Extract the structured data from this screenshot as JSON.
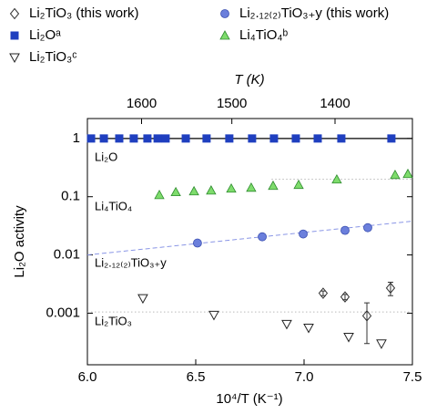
{
  "chart_data": {
    "type": "scatter",
    "xlabel": "10⁴/T (K⁻¹)",
    "ylabel": "Li₂O activity",
    "x2label": "T (K)",
    "xlim": [
      6.0,
      7.5
    ],
    "xticks": [
      {
        "value": 6,
        "label": "6.0"
      },
      6.5,
      {
        "value": 7,
        "label": "7.0"
      },
      7.5
    ],
    "x2ticks": [
      1600,
      1500,
      1400
    ],
    "ylim": [
      0.00013,
      2.2
    ],
    "yticks": [
      1,
      0.1,
      0.01,
      0.001
    ],
    "ylog": true,
    "series": [
      {
        "name": "Li₂TiO₃ (this work)",
        "marker": "diamond",
        "color": "#333333",
        "x": [
          7.088,
          7.189,
          7.29,
          7.399
        ],
        "values": [
          0.0022,
          0.0019,
          0.0009,
          0.0027
        ],
        "errors": [
          0.0002,
          0.0002,
          0.0006,
          0.0007
        ]
      },
      {
        "name": "Li₂.₁₂₍₂₎TiO₃₊y (this work)",
        "marker": "circle",
        "color": "#6b7fdc",
        "x": [
          6.508,
          6.807,
          6.996,
          7.189,
          7.294
        ],
        "values": [
          0.016,
          0.0205,
          0.0229,
          0.0264,
          0.0294
        ]
      },
      {
        "name": "Li₂Oᵃ",
        "marker": "square",
        "color": "#1f3fbf",
        "x": [
          6.017,
          6.076,
          6.147,
          6.214,
          6.277,
          6.324,
          6.361,
          6.454,
          6.55,
          6.655,
          6.76,
          6.861,
          6.962,
          7.063,
          7.172,
          7.403
        ],
        "values": [
          1,
          1,
          1,
          1,
          1,
          1,
          1,
          1,
          1,
          1,
          1,
          1,
          1,
          1,
          1,
          1
        ]
      },
      {
        "name": "Li₄TiO₄ᵇ",
        "marker": "triangle",
        "color": "#7edc6c",
        "x": [
          6.332,
          6.408,
          6.492,
          6.571,
          6.664,
          6.756,
          6.857,
          6.975,
          7.151,
          7.42,
          7.479
        ],
        "values": [
          0.107,
          0.12,
          0.124,
          0.128,
          0.138,
          0.143,
          0.154,
          0.16,
          0.198,
          0.237,
          0.246
        ]
      },
      {
        "name": "Li₂TiO₃ᶜ",
        "marker": "triangle-down",
        "color": "#222222",
        "x": [
          6.256,
          6.584,
          6.92,
          7.021,
          7.206,
          7.357
        ],
        "values": [
          0.0018,
          0.00093,
          0.00065,
          0.00056,
          0.00039,
          0.0003
        ]
      }
    ],
    "fit_lines": [
      {
        "x": [
          6.0,
          7.5
        ],
        "y": [
          1,
          1
        ],
        "style": "solid",
        "color": "#000000"
      },
      {
        "x": [
          6.85,
          7.5
        ],
        "y": [
          0.2,
          0.2
        ],
        "style": "dotted",
        "color": "#bbbbbb"
      },
      {
        "x": [
          6.0,
          7.5
        ],
        "y": [
          0.01,
          0.038
        ],
        "style": "dashed",
        "color": "#8a96e6"
      },
      {
        "x": [
          6.0,
          7.5
        ],
        "y": [
          0.00105,
          0.00105
        ],
        "style": "dotted",
        "color": "#bbbbbb"
      }
    ],
    "annotations": [
      "Li₂O",
      "Li₄TiO₄",
      "Li₂.₁₂₍₂₎TiO₃₊y",
      "Li₂TiO₃"
    ]
  }
}
